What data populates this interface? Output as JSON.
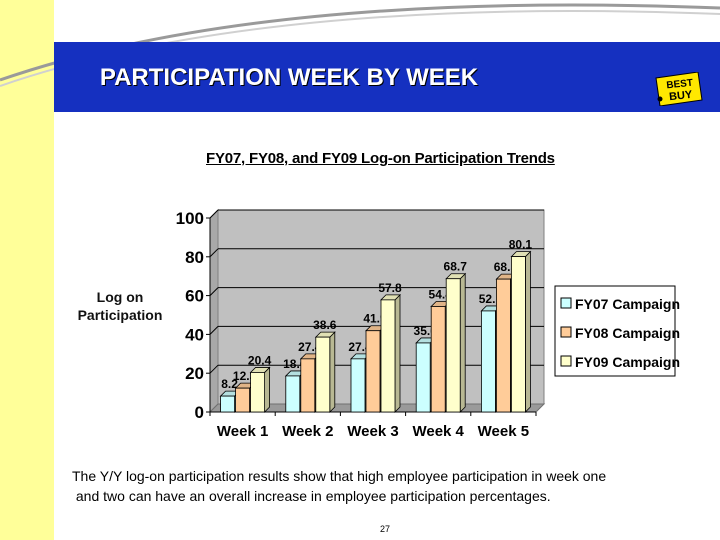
{
  "slide": {
    "title": "PARTICIPATION WEEK BY WEEK",
    "logo_text": [
      "BEST",
      "BUY"
    ],
    "caption_line1": "The Y/Y log-on participation results show that high employee participation in week one",
    "caption_line2": " and two can have an overall increase in employee participation percentages.",
    "page_number": "27",
    "colors": {
      "banner": "#1530c0",
      "left_strip": "#ffff99",
      "logo_yellow": "#ffe800"
    }
  },
  "chart_data": {
    "type": "bar",
    "title": "FY07, FY08, and  FY09 Log-on Participation Trends",
    "ylabel": "Log on Participation",
    "xlabel": "",
    "categories": [
      "Week 1",
      "Week 2",
      "Week 3",
      "Week 4",
      "Week 5"
    ],
    "series": [
      {
        "name": "FY07 Campaign",
        "values": [
          8.2,
          18.6,
          27.4,
          35.6,
          52.1
        ],
        "color": "#ccffff"
      },
      {
        "name": "FY08 Campaign",
        "values": [
          12.3,
          27.4,
          41.9,
          54.4,
          68.5
        ],
        "color": "#ffcc99"
      },
      {
        "name": "FY09 Campaign",
        "values": [
          20.4,
          38.6,
          57.8,
          68.7,
          80.1
        ],
        "color": "#ffffcc"
      }
    ],
    "ylim": [
      0,
      100
    ],
    "yticks": [
      0,
      20,
      40,
      60,
      80,
      100
    ],
    "grid": true,
    "legend": "right",
    "wall_color": "#c0c0c0"
  }
}
